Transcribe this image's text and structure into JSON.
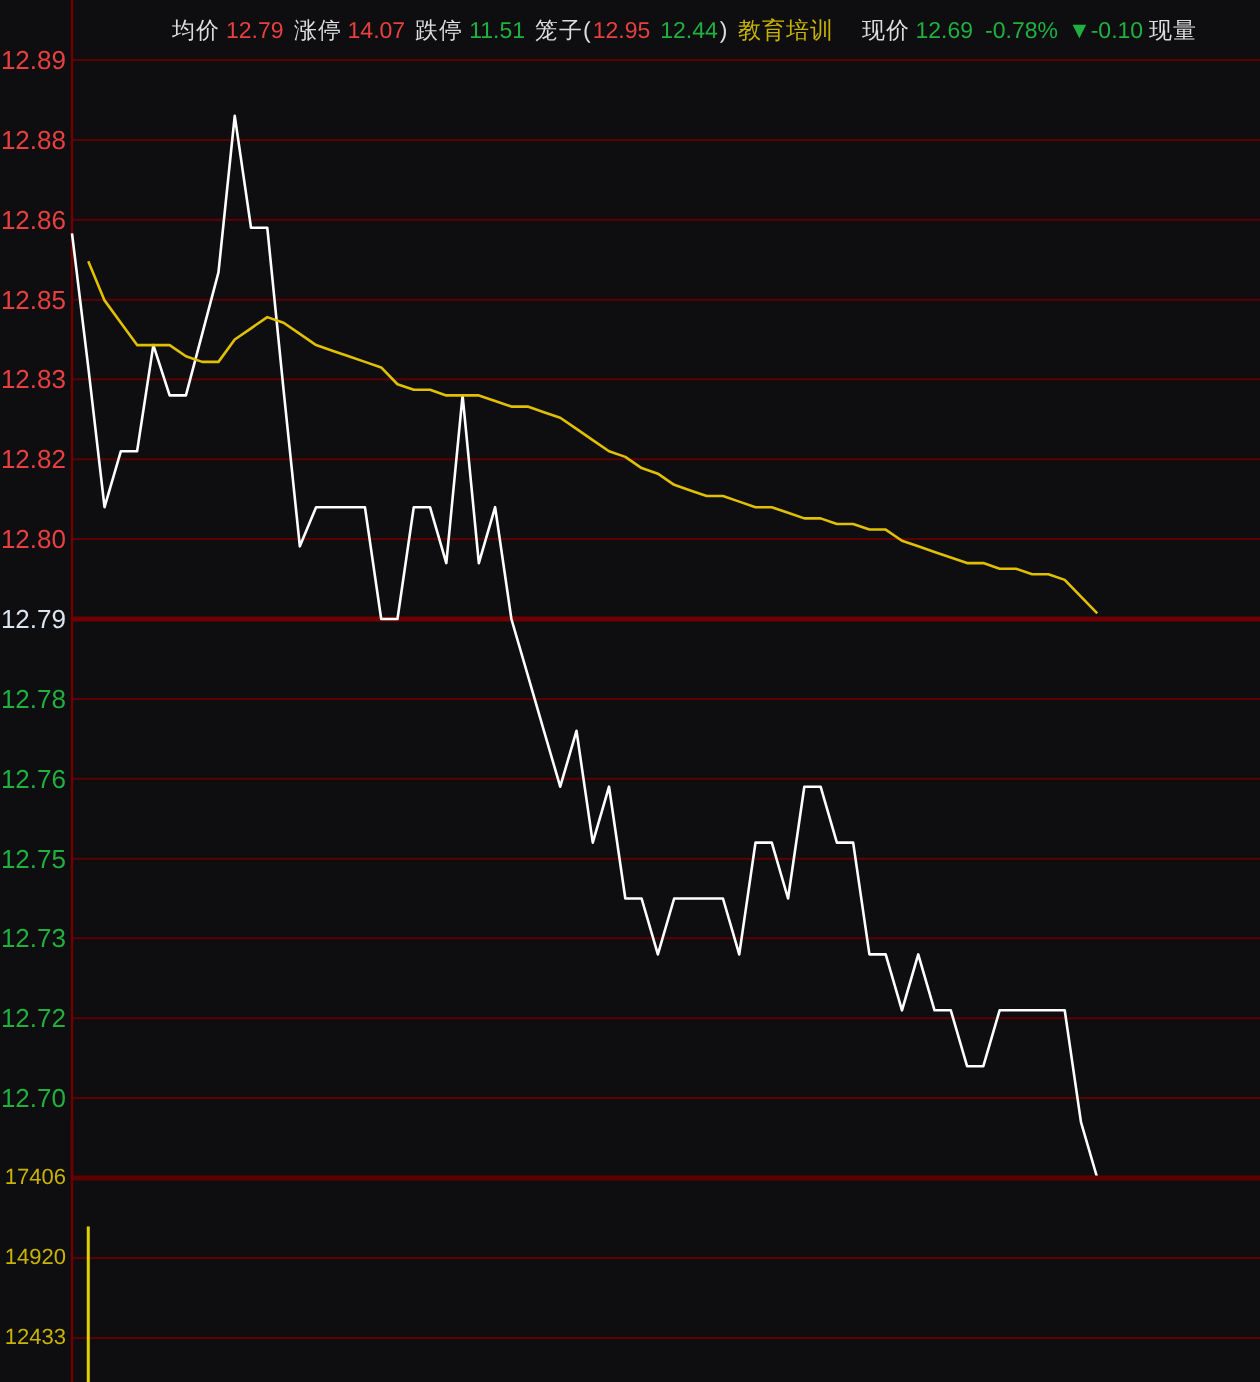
{
  "chart_data": [
    {
      "type": "line",
      "annotations": [
        "均价",
        "12.79",
        "涨停",
        "14.07",
        "跌停",
        "11.51",
        "笼子(",
        "12.95",
        "12.44",
        ")",
        "教育培训",
        "现价",
        "12.69",
        "-0.78%",
        "▼-0.10",
        "现量"
      ],
      "categories": [
        null,
        null,
        null,
        null,
        null,
        null,
        null,
        null,
        null,
        null,
        null,
        null,
        null,
        null,
        null,
        null,
        null,
        null,
        null,
        null,
        null,
        null,
        null,
        null,
        null,
        null,
        null,
        null,
        null,
        null,
        null,
        null,
        null,
        null,
        null,
        null,
        null,
        null,
        null,
        null,
        null,
        null,
        null,
        null,
        null,
        null,
        null,
        null,
        null,
        null,
        null,
        null,
        null,
        null,
        null,
        null,
        null,
        null,
        null,
        null,
        null,
        null,
        null,
        null,
        null,
        null,
        null,
        null,
        null,
        null,
        null,
        null,
        null,
        null
      ],
      "series": [
        {
          "color": "#ffffff",
          "values": [
            12.859,
            12.835,
            12.81,
            12.82,
            12.82,
            12.839,
            12.83,
            12.83,
            12.841,
            12.852,
            12.88,
            12.86,
            12.86,
            12.831,
            12.803,
            12.81,
            12.81,
            12.81,
            12.81,
            12.79,
            12.79,
            12.81,
            12.81,
            12.8,
            12.83,
            12.8,
            12.81,
            12.79,
            12.78,
            12.77,
            12.76,
            12.77,
            12.75,
            12.76,
            12.74,
            12.74,
            12.73,
            12.74,
            12.74,
            12.74,
            12.74,
            12.73,
            12.75,
            12.75,
            12.74,
            12.76,
            12.76,
            12.75,
            12.75,
            12.73,
            12.73,
            12.72,
            12.73,
            12.72,
            12.72,
            12.71,
            12.71,
            12.72,
            12.72,
            12.72,
            12.72,
            12.72,
            12.7,
            12.69,
            null,
            null,
            null,
            null,
            null,
            null,
            null,
            null,
            null,
            null
          ]
        },
        {
          "color": "#e0c000",
          "values": [
            null,
            12.854,
            12.847,
            12.843,
            12.839,
            12.839,
            12.839,
            12.837,
            12.836,
            12.836,
            12.84,
            12.842,
            12.844,
            12.843,
            12.841,
            12.839,
            12.838,
            12.837,
            12.836,
            12.835,
            12.832,
            12.831,
            12.831,
            12.83,
            12.83,
            12.83,
            12.829,
            12.828,
            12.828,
            12.827,
            12.826,
            12.824,
            12.822,
            12.82,
            12.819,
            12.817,
            12.816,
            12.814,
            12.813,
            12.812,
            12.812,
            12.811,
            12.81,
            12.81,
            12.809,
            12.808,
            12.808,
            12.807,
            12.807,
            12.806,
            12.806,
            12.804,
            12.803,
            12.802,
            12.801,
            12.8,
            12.8,
            12.799,
            12.799,
            12.798,
            12.798,
            12.797,
            12.794,
            12.791,
            null,
            null,
            null,
            null,
            null,
            null,
            null,
            null,
            null,
            null
          ]
        }
      ],
      "ylim": [
        12.69,
        12.89
      ],
      "yticks": [
        {
          "value": 12.7043,
          "label": "12.70"
        },
        {
          "value": 12.7186,
          "label": "12.72"
        },
        {
          "value": 12.7329,
          "label": "12.73"
        },
        {
          "value": 12.7471,
          "label": "12.75"
        },
        {
          "value": 12.7614,
          "label": "12.76"
        },
        {
          "value": 12.7757,
          "label": "12.78"
        },
        12.79,
        {
          "value": 12.8043,
          "label": "12.80"
        },
        {
          "value": 12.8186,
          "label": "12.82"
        },
        {
          "value": 12.8329,
          "label": "12.83"
        },
        {
          "value": 12.8471,
          "label": "12.85"
        },
        {
          "value": 12.8614,
          "label": "12.86"
        },
        {
          "value": 12.8757,
          "label": "12.88"
        },
        12.89
      ],
      "ref_lines": [
        {
          "axis": "y",
          "value": 12.79,
          "color": "#700000"
        }
      ],
      "grid": "y"
    },
    {
      "type": "bar",
      "categories": [
        null,
        null,
        null,
        null,
        null,
        null,
        null,
        null,
        null,
        null,
        null,
        null,
        null,
        null,
        null,
        null,
        null,
        null,
        null,
        null,
        null,
        null,
        null,
        null,
        null,
        null,
        null,
        null,
        null,
        null,
        null,
        null,
        null,
        null,
        null,
        null,
        null,
        null,
        null,
        null,
        null,
        null,
        null,
        null,
        null,
        null,
        null,
        null,
        null,
        null,
        null,
        null,
        null,
        null,
        null,
        null,
        null,
        null,
        null,
        null,
        null,
        null,
        null,
        null,
        null,
        null,
        null,
        null,
        null,
        null,
        null,
        null,
        null,
        null
      ],
      "values": [
        null,
        15900,
        null,
        null,
        null,
        null,
        null,
        null,
        null,
        null,
        null,
        null,
        null,
        null,
        null,
        null,
        null,
        null,
        null,
        null,
        null,
        null,
        null,
        null,
        null,
        null,
        null,
        null,
        null,
        null,
        null,
        null,
        null,
        null,
        null,
        null,
        null,
        null,
        null,
        null,
        null,
        null,
        null,
        null,
        null,
        null,
        null,
        null,
        null,
        null,
        null,
        null,
        null,
        null,
        null,
        null,
        null,
        null,
        null,
        null,
        null,
        null,
        null,
        null,
        null,
        null,
        null,
        null,
        null,
        null,
        null,
        null,
        null,
        null
      ],
      "color": "#e0d000",
      "ylim": [
        11065,
        17406
      ],
      "yticks": [
        12433,
        14920,
        17406
      ],
      "grid": "y"
    }
  ]
}
